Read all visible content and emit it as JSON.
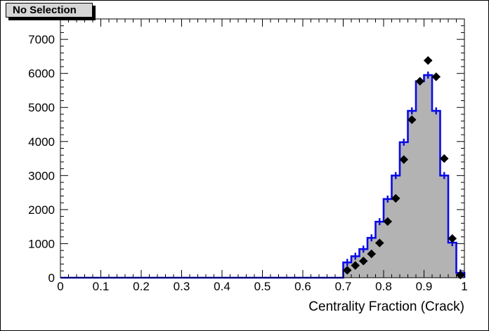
{
  "title_box": {
    "label": "No Selection"
  },
  "colors": {
    "background": "#ffffff",
    "frame": "#000000",
    "hist_fill": "#b3b3b3",
    "hist_line": "#0a0ae8",
    "marker": "#000000",
    "title_bg": "#d6d6d6",
    "title_shadow": "#000000"
  },
  "chart_data": {
    "type": "bar",
    "subtype": "histogram-with-points",
    "title": "No Selection",
    "xlabel": "Centrality Fraction (Crack)",
    "ylabel": "",
    "xlim": [
      0,
      1
    ],
    "ylim": [
      0,
      7600
    ],
    "grid": "off",
    "legend": "none",
    "bin_width": 0.02,
    "x_tick_labels": [
      "0",
      "0.1",
      "0.2",
      "0.3",
      "0.4",
      "0.5",
      "0.6",
      "0.7",
      "0.8",
      "0.9",
      "1"
    ],
    "x_tick_values": [
      0,
      0.1,
      0.2,
      0.3,
      0.4,
      0.5,
      0.6,
      0.7,
      0.8,
      0.9,
      1
    ],
    "x_minor_step": 0.02,
    "y_tick_labels": [
      "0",
      "1000",
      "2000",
      "3000",
      "4000",
      "5000",
      "6000",
      "7000"
    ],
    "y_tick_values": [
      0,
      1000,
      2000,
      3000,
      4000,
      5000,
      6000,
      7000
    ],
    "y_minor_step": 200,
    "series": [
      {
        "name": "filled-histogram",
        "style": "step-filled",
        "bin_centers": [
          0.71,
          0.73,
          0.75,
          0.77,
          0.79,
          0.81,
          0.83,
          0.85,
          0.87,
          0.89,
          0.91,
          0.93,
          0.95,
          0.97,
          0.99
        ],
        "values": [
          450,
          630,
          840,
          1170,
          1645,
          2310,
          3000,
          3980,
          4900,
          5770,
          5950,
          4900,
          3000,
          1030,
          140
        ]
      },
      {
        "name": "data-points",
        "style": "marker-diamond",
        "x": [
          0.71,
          0.73,
          0.75,
          0.77,
          0.79,
          0.81,
          0.83,
          0.85,
          0.87,
          0.89,
          0.91,
          0.93,
          0.95,
          0.97,
          0.99
        ],
        "y": [
          220,
          360,
          490,
          700,
          1020,
          1650,
          2330,
          3470,
          4640,
          5770,
          6380,
          5900,
          3500,
          1150,
          80
        ]
      }
    ]
  }
}
